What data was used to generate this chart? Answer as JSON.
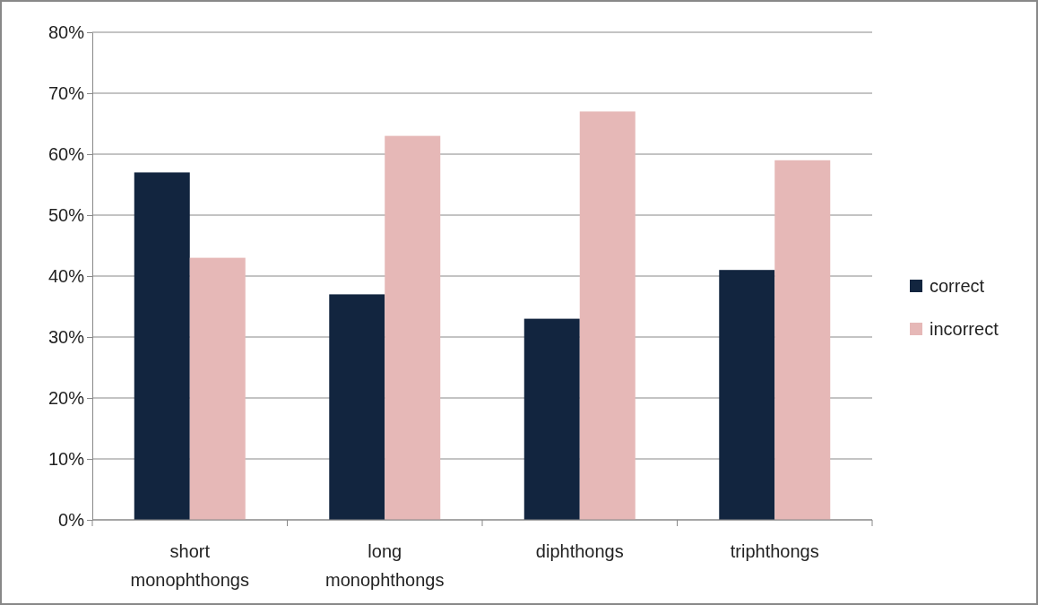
{
  "chart_data": {
    "type": "bar",
    "categories": [
      "short monophthongs",
      "long monophthongs",
      "diphthongs",
      "triphthongs"
    ],
    "series": [
      {
        "name": "correct",
        "color": "#12253f",
        "values": [
          57,
          37,
          33,
          41
        ]
      },
      {
        "name": "incorrect",
        "color": "#e6b8b7",
        "values": [
          43,
          63,
          67,
          59
        ]
      }
    ],
    "ylim": [
      0,
      80
    ],
    "yticks": [
      {
        "value": 0,
        "label": "0%"
      },
      {
        "value": 10,
        "label": "10%"
      },
      {
        "value": 20,
        "label": "20%"
      },
      {
        "value": 30,
        "label": "30%"
      },
      {
        "value": 40,
        "label": "40%"
      },
      {
        "value": 50,
        "label": "50%"
      },
      {
        "value": 60,
        "label": "60%"
      },
      {
        "value": 70,
        "label": "70%"
      },
      {
        "value": 80,
        "label": "80%"
      }
    ],
    "grid": "y",
    "legend": "right"
  }
}
